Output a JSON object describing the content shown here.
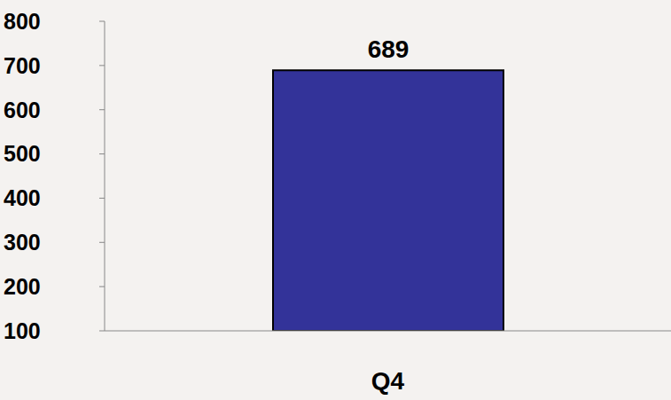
{
  "chart_data": {
    "type": "bar",
    "categories": [
      "Q4"
    ],
    "values": [
      689
    ],
    "color": "#333399",
    "ylim": [
      100,
      800
    ],
    "yticks": [
      100,
      200,
      300,
      400,
      500,
      600,
      700,
      800
    ],
    "grid": false,
    "data_labels": true
  }
}
